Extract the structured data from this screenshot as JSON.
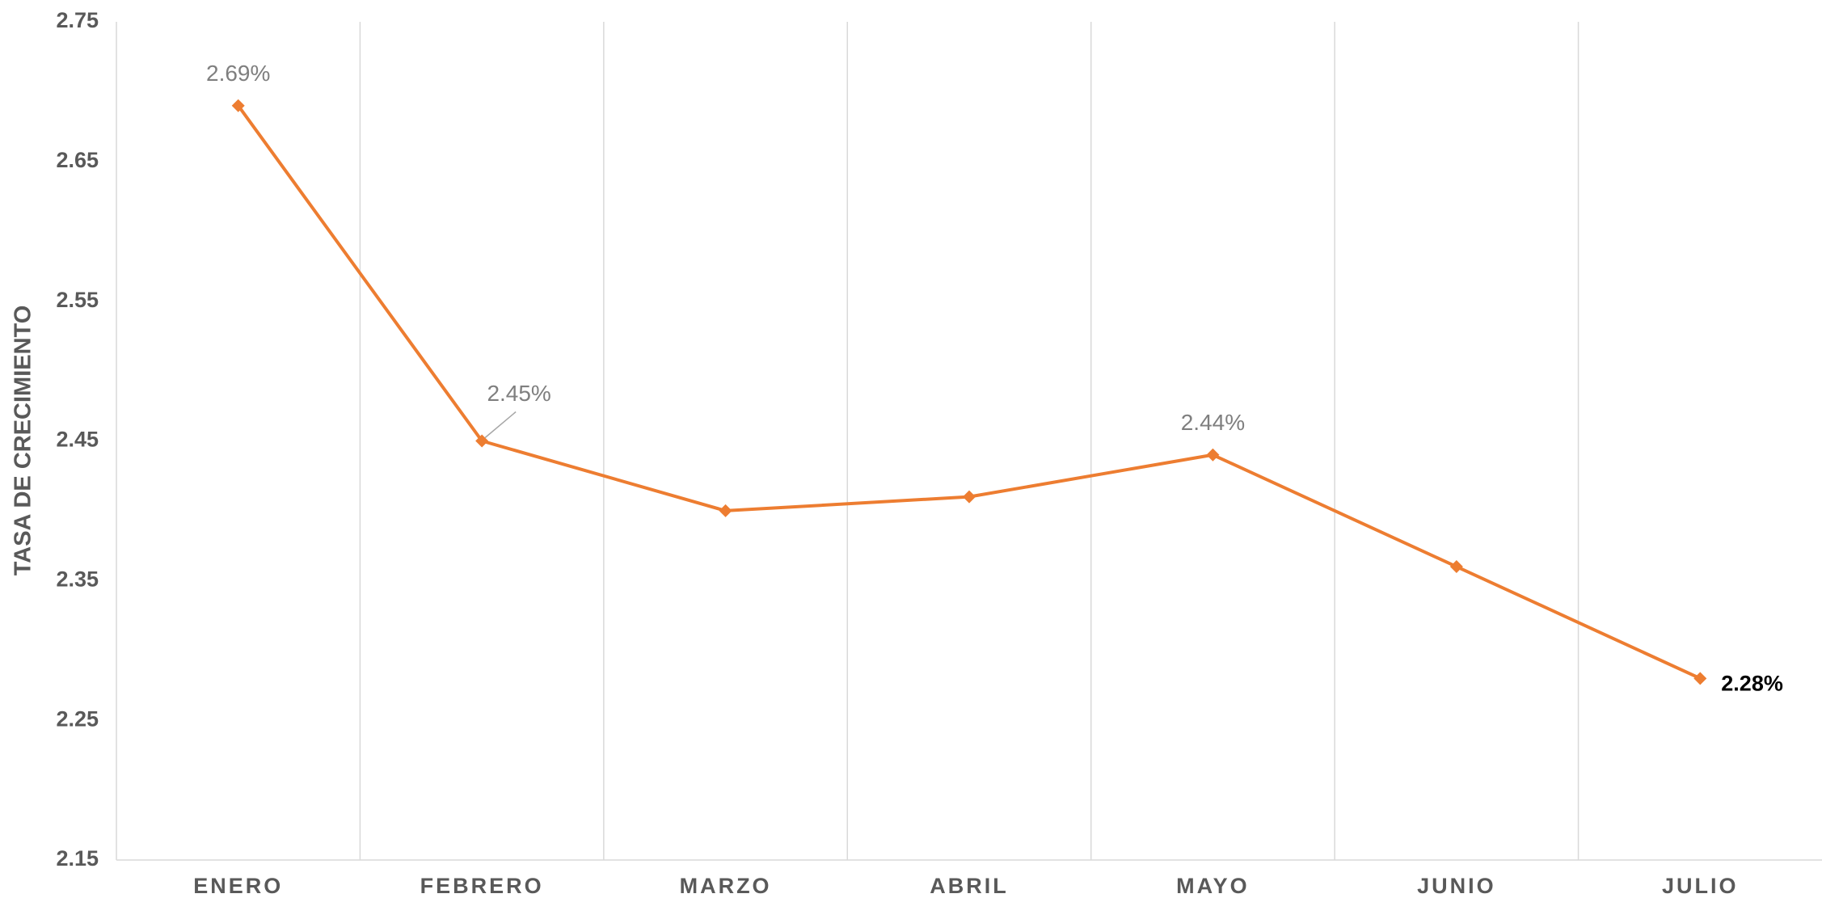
{
  "chart_data": {
    "type": "line",
    "y_label": "TASA DE CRECIMIENTO",
    "categories": [
      "ENERO",
      "FEBRERO",
      "MARZO",
      "ABRIL",
      "MAYO",
      "JUNIO",
      "JULIO"
    ],
    "series": [
      {
        "name": "Tasa de crecimiento",
        "color": "#ed7d31",
        "values": [
          2.69,
          2.45,
          2.4,
          2.41,
          2.44,
          2.36,
          2.28
        ],
        "value_labels": [
          "2.69%",
          "2.45%",
          null,
          null,
          "2.44%",
          null,
          "2.28%"
        ]
      }
    ],
    "ylim": [
      2.15,
      2.75
    ],
    "yticks": [
      2.15,
      2.25,
      2.35,
      2.45,
      2.55,
      2.65,
      2.75
    ],
    "xgrid": true,
    "ygrid": false,
    "legend": false
  }
}
